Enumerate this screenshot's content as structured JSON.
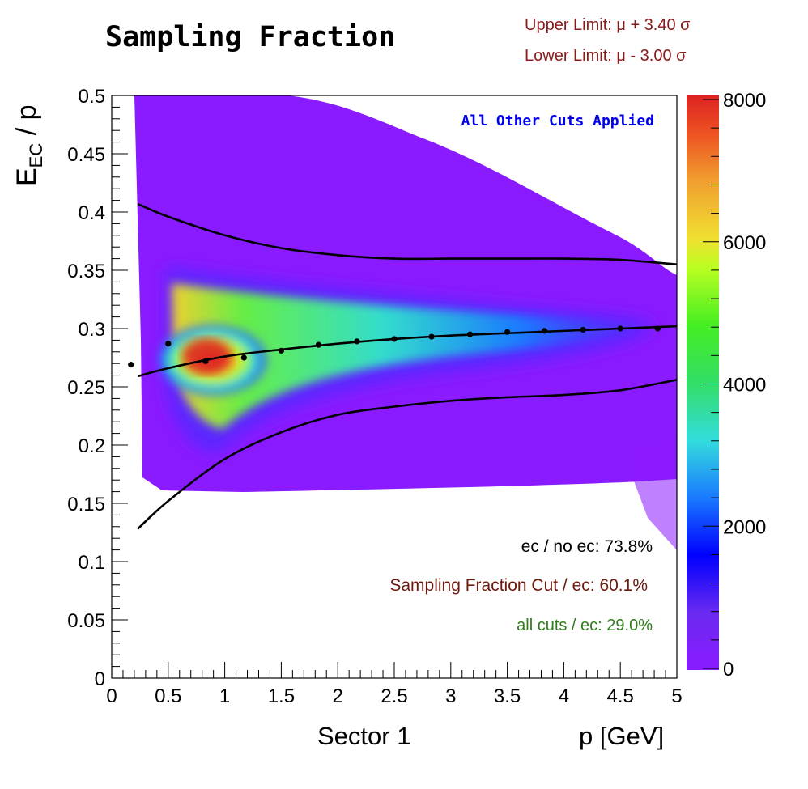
{
  "header": {
    "title": "Sampling Fraction",
    "upper_limit": "Upper Limit: μ + 3.40 σ",
    "lower_limit": "Lower Limit: μ - 3.00 σ"
  },
  "axes": {
    "y_label_main": "E",
    "y_label_sub": "EC",
    "y_label_tail": " / p",
    "x_label_left": "Sector 1",
    "x_label_right": "p [GeV]"
  },
  "annotations": {
    "cuts_note": "All Other Cuts Applied",
    "ec_ratio": "ec / no ec:  73.8%",
    "sf_cut": "Sampling Fraction Cut / ec: 60.1%",
    "all_cuts": "all cuts / ec: 29.0%"
  },
  "colors": {
    "limit_text": "#8b1a1a",
    "cuts_note": "#0000ee",
    "sf_cut_text": "#6b1a0d",
    "all_cuts_text": "#2e7d1a",
    "background_fill": "#8a1aff"
  },
  "chart_data": {
    "type": "heatmap",
    "xlim": [
      0,
      5
    ],
    "ylim": [
      0,
      0.5
    ],
    "x_ticks": [
      0,
      0.5,
      1,
      1.5,
      2,
      2.5,
      3,
      3.5,
      4,
      4.5,
      5
    ],
    "y_ticks": [
      0,
      0.05,
      0.1,
      0.15,
      0.2,
      0.25,
      0.3,
      0.35,
      0.4,
      0.45,
      0.5
    ],
    "colorbar": {
      "min": 0,
      "max": 8000,
      "ticks": [
        0,
        2000,
        4000,
        6000,
        8000
      ]
    },
    "grid": false,
    "mean_points": {
      "x": [
        0.17,
        0.5,
        0.83,
        1.17,
        1.5,
        1.83,
        2.17,
        2.5,
        2.83,
        3.17,
        3.5,
        3.83,
        4.17,
        4.5,
        4.83
      ],
      "y": [
        0.269,
        0.287,
        0.272,
        0.275,
        0.281,
        0.286,
        0.289,
        0.291,
        0.293,
        0.295,
        0.297,
        0.298,
        0.299,
        0.3,
        0.3
      ]
    },
    "mean_curve": {
      "x": [
        0.23,
        0.5,
        1.0,
        1.5,
        2.0,
        2.5,
        3.0,
        3.5,
        4.0,
        4.5,
        5.0
      ],
      "y": [
        0.259,
        0.266,
        0.276,
        0.282,
        0.287,
        0.291,
        0.294,
        0.296,
        0.298,
        0.3,
        0.302
      ]
    },
    "upper_limit_curve": {
      "x": [
        0.23,
        0.5,
        1.0,
        1.5,
        2.0,
        2.5,
        3.0,
        3.5,
        4.0,
        4.5,
        5.0
      ],
      "y": [
        0.407,
        0.396,
        0.38,
        0.369,
        0.363,
        0.36,
        0.36,
        0.36,
        0.36,
        0.359,
        0.355
      ]
    },
    "lower_limit_curve": {
      "x": [
        0.23,
        0.5,
        1.0,
        1.5,
        2.0,
        2.5,
        3.0,
        3.5,
        4.0,
        4.5,
        5.0
      ],
      "y": [
        0.128,
        0.152,
        0.188,
        0.211,
        0.226,
        0.233,
        0.238,
        0.241,
        0.243,
        0.247,
        0.256
      ]
    }
  }
}
